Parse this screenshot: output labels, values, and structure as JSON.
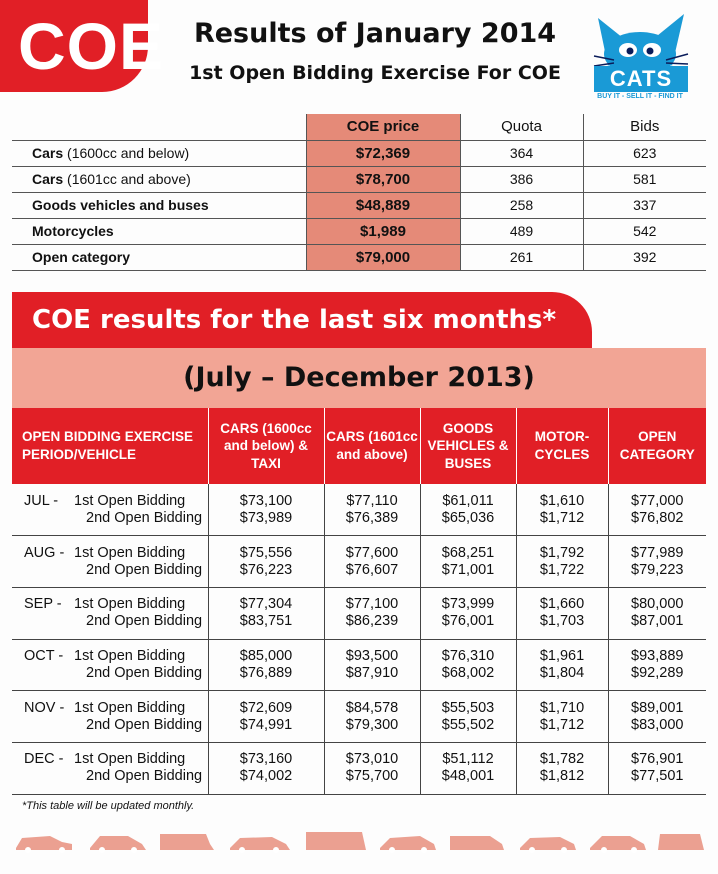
{
  "header": {
    "badge": "COE",
    "title": "Results of January 2014",
    "subtitle": "1st Open Bidding Exercise For COE",
    "logo_text": "CATS",
    "logo_tagline": "BUY IT - SELL IT - FIND IT"
  },
  "current": {
    "columns": [
      "COE price",
      "Quota",
      "Bids"
    ],
    "rows": [
      {
        "bold": "Cars",
        "rest": " (1600cc and below)",
        "price": "$72,369",
        "quota": "364",
        "bids": "623"
      },
      {
        "bold": "Cars",
        "rest": " (1601cc and above)",
        "price": "$78,700",
        "quota": "386",
        "bids": "581"
      },
      {
        "bold": "Goods vehicles and buses",
        "rest": "",
        "price": "$48,889",
        "quota": "258",
        "bids": "337"
      },
      {
        "bold": "Motorcycles",
        "rest": "",
        "price": "$1,989",
        "quota": "489",
        "bids": "542"
      },
      {
        "bold": "Open category",
        "rest": "",
        "price": "$79,000",
        "quota": "261",
        "bids": "392"
      }
    ]
  },
  "history": {
    "banner": "COE results for the last six months*",
    "period": "(July – December 2013)",
    "headers": [
      "OPEN BIDDING EXERCISE PERIOD/VEHICLE",
      "CARS (1600cc and below) & TAXI",
      "CARS (1601cc and above)",
      "GOODS VEHICLES & BUSES",
      "MOTOR-CYCLES",
      "OPEN CATEGORY"
    ],
    "round_labels": [
      "1st Open Bidding",
      "2nd Open Bidding"
    ],
    "rows": [
      {
        "month": "JUL -",
        "cars_small": [
          "$73,100",
          "$73,989"
        ],
        "cars_large": [
          "$77,110",
          "$76,389"
        ],
        "goods": [
          "$61,011",
          "$65,036"
        ],
        "moto": [
          "$1,610",
          "$1,712"
        ],
        "open": [
          "$77,000",
          "$76,802"
        ]
      },
      {
        "month": "AUG -",
        "cars_small": [
          "$75,556",
          "$76,223"
        ],
        "cars_large": [
          "$77,600",
          "$76,607"
        ],
        "goods": [
          "$68,251",
          "$71,001"
        ],
        "moto": [
          "$1,792",
          "$1,722"
        ],
        "open": [
          "$77,989",
          "$79,223"
        ]
      },
      {
        "month": "SEP -",
        "cars_small": [
          "$77,304",
          "$83,751"
        ],
        "cars_large": [
          "$77,100",
          "$86,239"
        ],
        "goods": [
          "$73,999",
          "$76,001"
        ],
        "moto": [
          "$1,660",
          "$1,703"
        ],
        "open": [
          "$80,000",
          "$87,001"
        ]
      },
      {
        "month": "OCT -",
        "cars_small": [
          "$85,000",
          "$76,889"
        ],
        "cars_large": [
          "$93,500",
          "$87,910"
        ],
        "goods": [
          "$76,310",
          "$68,002"
        ],
        "moto": [
          "$1,961",
          "$1,804"
        ],
        "open": [
          "$93,889",
          "$92,289"
        ]
      },
      {
        "month": "NOV -",
        "cars_small": [
          "$72,609",
          "$74,991"
        ],
        "cars_large": [
          "$84,578",
          "$79,300"
        ],
        "goods": [
          "$55,503",
          "$55,502"
        ],
        "moto": [
          "$1,710",
          "$1,712"
        ],
        "open": [
          "$89,001",
          "$83,000"
        ]
      },
      {
        "month": "DEC -",
        "cars_small": [
          "$73,160",
          "$74,002"
        ],
        "cars_large": [
          "$73,010",
          "$75,700"
        ],
        "goods": [
          "$51,112",
          "$48,001"
        ],
        "moto": [
          "$1,782",
          "$1,812"
        ],
        "open": [
          "$76,901",
          "$77,501"
        ]
      }
    ]
  },
  "footnote": "*This table will be updated monthly.",
  "colors": {
    "brand_red": "#e11f26",
    "price_column": "#e58a78",
    "period_band": "#f2a595",
    "logo_blue": "#1a9ad6"
  }
}
